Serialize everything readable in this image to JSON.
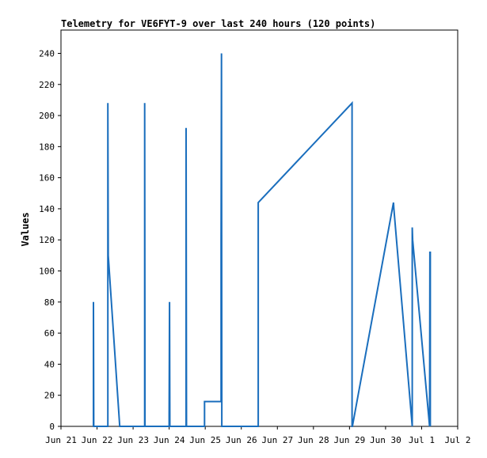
{
  "chart_data": {
    "type": "line",
    "title": "Telemetry for VE6FYT-9 over last 240 hours (120 points)",
    "xlabel": "",
    "ylabel": "Values",
    "grid": false,
    "xlim": [
      0,
      11
    ],
    "ylim": [
      0,
      255
    ],
    "x_ticks": [
      {
        "x": 0,
        "label": "Jun 21"
      },
      {
        "x": 1,
        "label": "Jun 22"
      },
      {
        "x": 2,
        "label": "Jun 23"
      },
      {
        "x": 3,
        "label": "Jun 24"
      },
      {
        "x": 4,
        "label": "Jun 25"
      },
      {
        "x": 5,
        "label": "Jun 26"
      },
      {
        "x": 6,
        "label": "Jun 27"
      },
      {
        "x": 7,
        "label": "Jun 28"
      },
      {
        "x": 8,
        "label": "Jun 29"
      },
      {
        "x": 9,
        "label": "Jun 30"
      },
      {
        "x": 10,
        "label": "Jul 1"
      },
      {
        "x": 11,
        "label": "Jul 2"
      }
    ],
    "y_ticks": [
      0,
      20,
      40,
      60,
      80,
      100,
      120,
      140,
      160,
      180,
      200,
      220,
      240
    ],
    "series": [
      {
        "color": "#1a6ebd",
        "x": [
          0.9,
          0.9,
          0.91,
          1.3,
          1.3,
          1.31,
          1.63,
          1.64,
          2.32,
          2.32,
          2.33,
          3.0,
          3.0,
          3.01,
          3.02,
          3.47,
          3.47,
          3.48,
          3.98,
          3.98,
          4.44,
          4.44,
          4.45,
          4.46,
          4.46,
          5.47,
          5.47,
          8.07,
          8.07,
          8.08,
          9.22,
          9.23,
          9.74,
          9.74,
          9.75,
          10.22,
          10.23,
          10.24,
          10.24
        ],
        "y": [
          0,
          80,
          0,
          0,
          208,
          110,
          0,
          0,
          0,
          208,
          0,
          0,
          8,
          80,
          0,
          0,
          192,
          0,
          0,
          16,
          16,
          120,
          240,
          16,
          0,
          0,
          144,
          208,
          0,
          0,
          144,
          140,
          0,
          128,
          120,
          0,
          112,
          112,
          0
        ]
      }
    ]
  }
}
